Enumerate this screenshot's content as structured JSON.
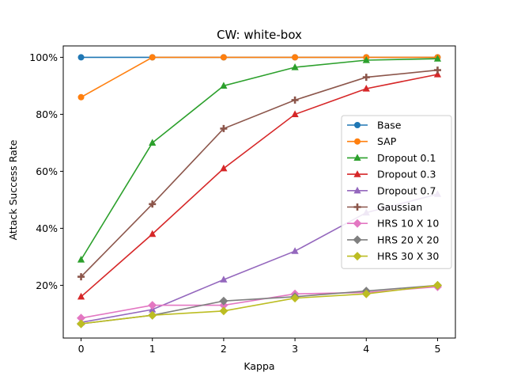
{
  "chart_data": {
    "type": "line",
    "title": "CW: white-box",
    "xlabel": "Kappa",
    "ylabel": "Attack Success Rate",
    "x": [
      0,
      1,
      2,
      3,
      4,
      5
    ],
    "xlim": [
      -0.25,
      5.25
    ],
    "ylim": [
      1.5,
      104
    ],
    "xticks": [
      "0",
      "1",
      "2",
      "3",
      "4",
      "5"
    ],
    "yticks": [
      {
        "value": 20,
        "label": "20%"
      },
      {
        "value": 40,
        "label": "40%"
      },
      {
        "value": 60,
        "label": "60%"
      },
      {
        "value": 80,
        "label": "80%"
      },
      {
        "value": 100,
        "label": "100%"
      }
    ],
    "grid": false,
    "legend_position": "center-right",
    "series": [
      {
        "name": "Base",
        "color": "#1f77b4",
        "marker": "circle",
        "values": [
          100,
          100,
          100,
          100,
          100,
          100
        ]
      },
      {
        "name": "SAP",
        "color": "#ff7f0e",
        "marker": "circle",
        "values": [
          86,
          100,
          100,
          100,
          100,
          100
        ]
      },
      {
        "name": "Dropout 0.1",
        "color": "#2ca02c",
        "marker": "triangle",
        "values": [
          29,
          70,
          90,
          96.5,
          99,
          99.5
        ]
      },
      {
        "name": "Dropout 0.3",
        "color": "#d62728",
        "marker": "triangle",
        "values": [
          16,
          38,
          61,
          80,
          89,
          94
        ]
      },
      {
        "name": "Dropout 0.7",
        "color": "#9467bd",
        "marker": "triangle",
        "values": [
          7,
          11.5,
          22,
          32,
          45.5,
          52
        ]
      },
      {
        "name": "Gaussian",
        "color": "#8c564b",
        "marker": "plus",
        "values": [
          23,
          48.5,
          75,
          85,
          93,
          95.5
        ]
      },
      {
        "name": "HRS 10 X 10",
        "color": "#e377c2",
        "marker": "diamond",
        "values": [
          8.5,
          13,
          13,
          17,
          17.5,
          19.5
        ]
      },
      {
        "name": "HRS 20 X 20",
        "color": "#7f7f7f",
        "marker": "diamond",
        "values": [
          6.5,
          9.5,
          14.5,
          16,
          18,
          20
        ]
      },
      {
        "name": "HRS 30 X 30",
        "color": "#bcbd22",
        "marker": "diamond",
        "values": [
          6.5,
          9.5,
          11,
          15.5,
          17,
          20
        ]
      }
    ]
  }
}
